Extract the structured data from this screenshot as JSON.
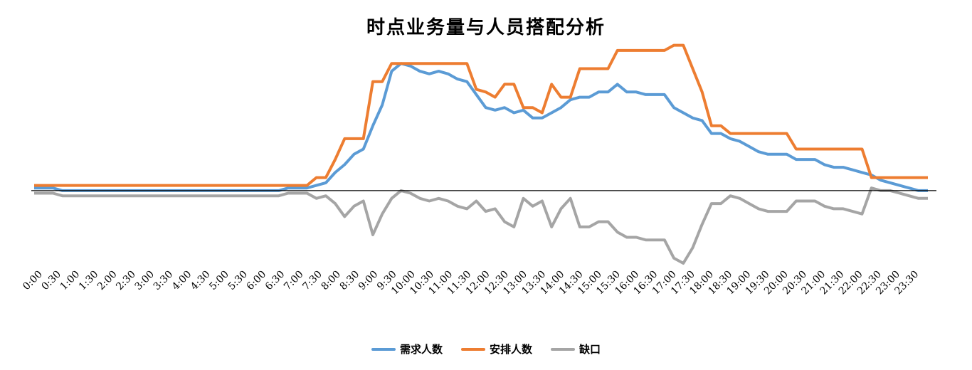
{
  "chart_data": {
    "type": "line",
    "title": "时点业务量与人员搭配分析",
    "categories": [
      "0:00",
      "0:15",
      "0:30",
      "0:45",
      "1:00",
      "1:15",
      "1:30",
      "1:45",
      "2:00",
      "2:15",
      "2:30",
      "2:45",
      "3:00",
      "3:15",
      "3:30",
      "3:45",
      "4:00",
      "4:15",
      "4:30",
      "4:45",
      "5:00",
      "5:15",
      "5:30",
      "5:45",
      "6:00",
      "6:15",
      "6:30",
      "6:45",
      "7:00",
      "7:15",
      "7:30",
      "7:45",
      "8:00",
      "8:15",
      "8:30",
      "8:45",
      "9:00",
      "9:15",
      "9:30",
      "9:45",
      "10:00",
      "10:15",
      "10:30",
      "10:45",
      "11:00",
      "11:15",
      "11:30",
      "11:45",
      "12:00",
      "12:15",
      "12:30",
      "12:45",
      "13:00",
      "13:15",
      "13:30",
      "13:45",
      "14:00",
      "14:15",
      "14:30",
      "14:45",
      "15:00",
      "15:15",
      "15:30",
      "15:45",
      "16:00",
      "16:15",
      "16:30",
      "16:45",
      "17:00",
      "17:15",
      "17:30",
      "17:45",
      "18:00",
      "18:15",
      "18:30",
      "18:45",
      "19:00",
      "19:15",
      "19:30",
      "19:45",
      "20:00",
      "20:15",
      "20:30",
      "20:45",
      "21:00",
      "21:15",
      "21:30",
      "21:45",
      "22:00",
      "22:15",
      "22:30",
      "22:45",
      "23:00",
      "23:15",
      "23:30",
      "23:45"
    ],
    "tick_labels": [
      "0:00",
      "0:30",
      "1:00",
      "1:30",
      "2:00",
      "2:30",
      "3:00",
      "3:30",
      "4:00",
      "4:30",
      "5:00",
      "5:30",
      "6:00",
      "6:30",
      "7:00",
      "7:30",
      "8:00",
      "8:30",
      "9:00",
      "9:30",
      "10:00",
      "10:30",
      "11:00",
      "11:30",
      "12:00",
      "12:30",
      "13:00",
      "13:30",
      "14:00",
      "14:30",
      "15:00",
      "15:30",
      "16:00",
      "16:30",
      "17:00",
      "17:30",
      "18:00",
      "18:30",
      "19:00",
      "19:30",
      "20:00",
      "20:30",
      "21:00",
      "21:30",
      "22:00",
      "22:30",
      "23:00",
      "23:30"
    ],
    "ylim": [
      -28,
      57
    ],
    "grid": false,
    "legend_position": "bottom",
    "series": [
      {
        "name": "需求人数",
        "color": "#5B9BD5",
        "values": [
          1,
          1,
          1,
          0,
          0,
          0,
          0,
          0,
          0,
          0,
          0,
          0,
          0,
          0,
          0,
          0,
          0,
          0,
          0,
          0,
          0,
          0,
          0,
          0,
          0,
          0,
          0,
          1,
          1,
          1,
          2,
          3,
          7,
          10,
          14,
          16,
          25,
          33,
          46,
          49,
          48,
          46,
          45,
          46,
          45,
          43,
          42,
          37,
          32,
          31,
          32,
          30,
          31,
          28,
          28,
          30,
          32,
          35,
          36,
          36,
          38,
          38,
          41,
          38,
          38,
          37,
          37,
          37,
          32,
          30,
          28,
          27,
          22,
          22,
          20,
          19,
          17,
          15,
          14,
          14,
          14,
          12,
          12,
          12,
          10,
          9,
          9,
          8,
          7,
          6,
          4,
          3,
          2,
          1,
          0,
          0
        ]
      },
      {
        "name": "安排人数",
        "color": "#ED7D31",
        "values": [
          2,
          2,
          2,
          2,
          2,
          2,
          2,
          2,
          2,
          2,
          2,
          2,
          2,
          2,
          2,
          2,
          2,
          2,
          2,
          2,
          2,
          2,
          2,
          2,
          2,
          2,
          2,
          2,
          2,
          2,
          5,
          5,
          12,
          20,
          20,
          20,
          42,
          42,
          49,
          49,
          49,
          49,
          49,
          49,
          49,
          49,
          49,
          39,
          38,
          36,
          41,
          41,
          32,
          32,
          30,
          41,
          36,
          36,
          47,
          47,
          47,
          47,
          54,
          54,
          54,
          54,
          54,
          54,
          56,
          56,
          47,
          38,
          25,
          25,
          22,
          22,
          22,
          22,
          22,
          22,
          22,
          16,
          16,
          16,
          16,
          16,
          16,
          16,
          16,
          5,
          5,
          5,
          5,
          5,
          5,
          5
        ]
      },
      {
        "name": "缺口",
        "color": "#A5A5A5",
        "values": [
          -1,
          -1,
          -1,
          -2,
          -2,
          -2,
          -2,
          -2,
          -2,
          -2,
          -2,
          -2,
          -2,
          -2,
          -2,
          -2,
          -2,
          -2,
          -2,
          -2,
          -2,
          -2,
          -2,
          -2,
          -2,
          -2,
          -2,
          -1,
          -1,
          -1,
          -3,
          -2,
          -5,
          -10,
          -6,
          -4,
          -17,
          -9,
          -3,
          0,
          -1,
          -3,
          -4,
          -3,
          -4,
          -6,
          -7,
          -4,
          -8,
          -7,
          -12,
          -14,
          -3,
          -6,
          -4,
          -14,
          -7,
          -3,
          -14,
          -14,
          -12,
          -12,
          -16,
          -18,
          -18,
          -19,
          -19,
          -19,
          -26,
          -28,
          -22,
          -13,
          -5,
          -5,
          -2,
          -3,
          -5,
          -7,
          -8,
          -8,
          -8,
          -4,
          -4,
          -4,
          -6,
          -7,
          -7,
          -8,
          -9,
          1,
          0,
          0,
          -1,
          -2,
          -3,
          -3
        ]
      }
    ]
  }
}
